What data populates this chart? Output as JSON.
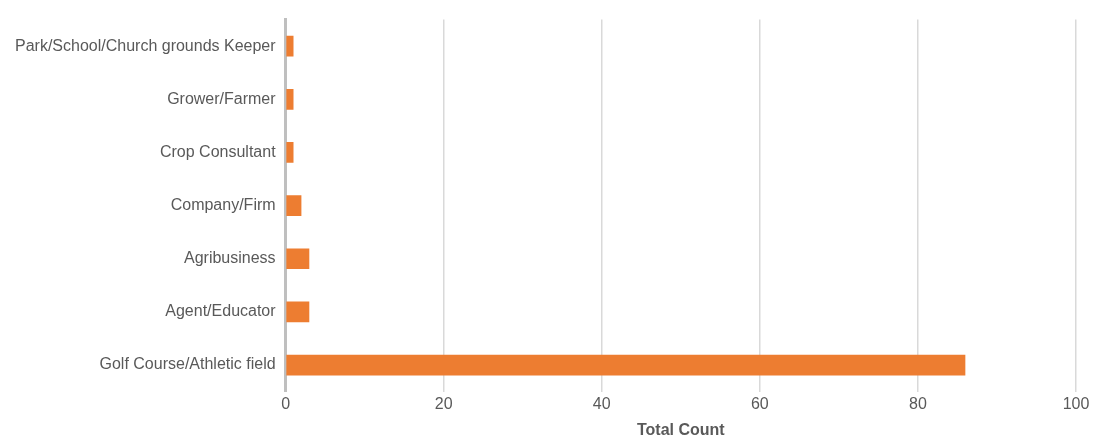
{
  "chart_data": {
    "type": "bar",
    "orientation": "horizontal",
    "xlabel": "Total Count",
    "categories": [
      "Park/School/Church grounds Keeper",
      "Grower/Farmer",
      "Crop Consultant",
      "Company/Firm",
      "Agribusiness",
      "Agent/Educator",
      "Golf Course/Athletic field"
    ],
    "values": [
      1,
      1,
      1,
      2,
      3,
      3,
      86
    ],
    "color": "#ed7d31",
    "xlim": [
      0,
      100
    ],
    "xticks": [
      0,
      20,
      40,
      60,
      80,
      100
    ],
    "grid": "x",
    "legend": false
  }
}
